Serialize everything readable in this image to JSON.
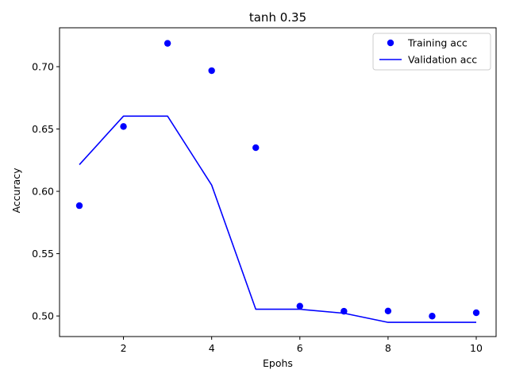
{
  "chart_data": {
    "type": "line",
    "title": "tanh 0.35",
    "xlabel": "Epohs",
    "ylabel": "Accuracy",
    "xlim": [
      0.55,
      10.45
    ],
    "ylim": [
      0.4835,
      0.7312
    ],
    "xticks": [
      2,
      4,
      6,
      8,
      10
    ],
    "yticks": [
      0.5,
      0.55,
      0.6,
      0.65,
      0.7
    ],
    "ytick_labels": [
      "0.50",
      "0.55",
      "0.60",
      "0.65",
      "0.70"
    ],
    "x": [
      1,
      2,
      3,
      4,
      5,
      6,
      7,
      8,
      9,
      10
    ],
    "series": [
      {
        "name": "Training acc",
        "style": "markers",
        "color": "#0000ff",
        "values": [
          0.5885,
          0.652,
          0.7187,
          0.6968,
          0.635,
          0.5079,
          0.5038,
          0.504,
          0.4999,
          0.5026
        ]
      },
      {
        "name": "Validation acc",
        "style": "line",
        "color": "#0000ff",
        "values": [
          0.6214,
          0.6603,
          0.6603,
          0.605,
          0.5054,
          0.5054,
          0.5022,
          0.4949,
          0.4949,
          0.4949
        ]
      }
    ],
    "grid": false,
    "legend_position": "upper right"
  }
}
